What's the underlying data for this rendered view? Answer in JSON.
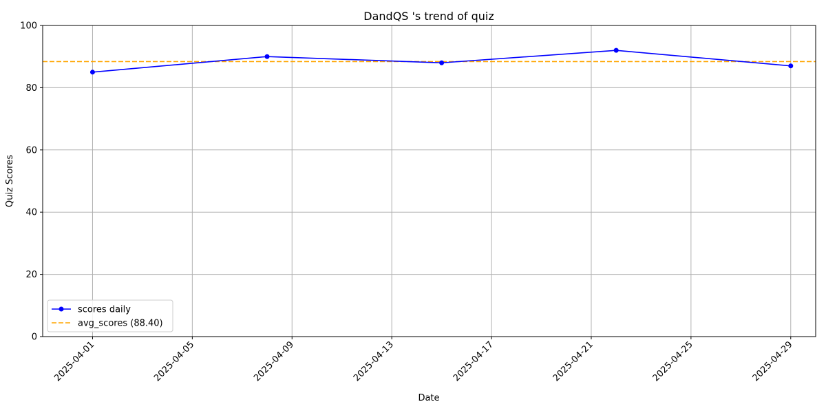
{
  "chart_data": {
    "type": "line",
    "title": "DandQS 's trend of quiz",
    "xlabel": "Date",
    "ylabel": "Quiz Scores",
    "x_type": "date",
    "xlim": [
      "2025-03-30",
      "2025-04-30"
    ],
    "ylim": [
      0,
      100
    ],
    "x_ticks": [
      "2025-04-01",
      "2025-04-05",
      "2025-04-09",
      "2025-04-13",
      "2025-04-17",
      "2025-04-21",
      "2025-04-25",
      "2025-04-29"
    ],
    "y_ticks": [
      0,
      20,
      40,
      60,
      80,
      100
    ],
    "series": [
      {
        "name": "scores daily",
        "color": "#0000ff",
        "marker": "circle",
        "line_style": "solid",
        "points": [
          {
            "x": "2025-04-01",
            "y": 85
          },
          {
            "x": "2025-04-08",
            "y": 90
          },
          {
            "x": "2025-04-15",
            "y": 88
          },
          {
            "x": "2025-04-22",
            "y": 92
          },
          {
            "x": "2025-04-29",
            "y": 87
          }
        ]
      }
    ],
    "reference_lines": [
      {
        "name": "avg_scores (88.40)",
        "y": 88.4,
        "color": "#ffa500",
        "line_style": "dashed"
      }
    ],
    "grid": true,
    "legend_position": "lower-left",
    "x_tick_rotation": 45
  }
}
